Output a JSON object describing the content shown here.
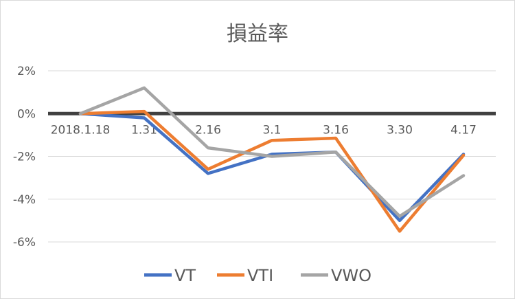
{
  "chart_data": {
    "type": "line",
    "title": "損益率",
    "categories": [
      "2018.1.18",
      "1.31",
      "2.16",
      "3.1",
      "3.16",
      "3.30",
      "4.17"
    ],
    "y_ticks": [
      "2%",
      "0%",
      "-2%",
      "-4%",
      "-6%"
    ],
    "ylim": [
      -6,
      2
    ],
    "y_unit": "%",
    "grid": true,
    "legend_position": "bottom",
    "series": [
      {
        "name": "VT",
        "color": "#4472C4",
        "values": [
          0.0,
          -0.2,
          -2.8,
          -1.9,
          -1.8,
          -5.0,
          -1.9
        ]
      },
      {
        "name": "VTI",
        "color": "#ED7D31",
        "values": [
          0.0,
          0.1,
          -2.6,
          -1.25,
          -1.15,
          -5.5,
          -1.95
        ]
      },
      {
        "name": "VWO",
        "color": "#A5A5A5",
        "values": [
          0.0,
          1.2,
          -1.6,
          -2.0,
          -1.8,
          -4.8,
          -2.9
        ]
      }
    ]
  }
}
